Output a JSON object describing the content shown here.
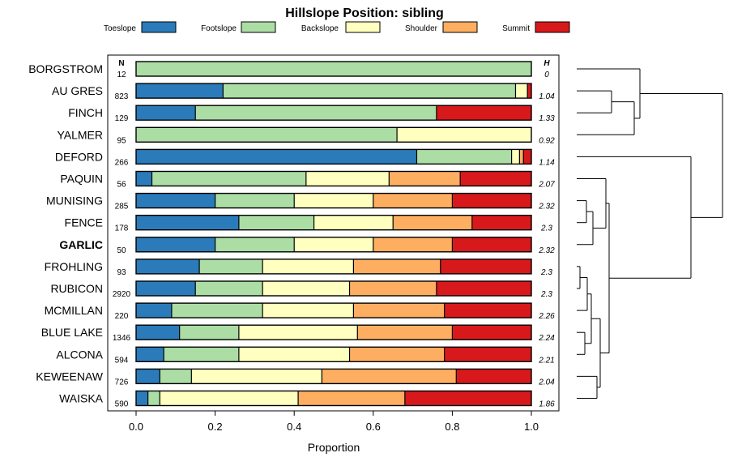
{
  "chart_data": {
    "type": "bar",
    "stacked": true,
    "orientation": "horizontal",
    "title": "Hillslope Position: sibling",
    "xlabel": "Proportion",
    "xlim": [
      0,
      1
    ],
    "xticks": [
      "0.0",
      "0.2",
      "0.4",
      "0.6",
      "0.8",
      "1.0"
    ],
    "n_header": "N",
    "h_header": "H",
    "legend_position": "top",
    "highlight": "GARLIC",
    "series": [
      {
        "name": "Toeslope",
        "color": "#2b7bba"
      },
      {
        "name": "Footslope",
        "color": "#abdda4"
      },
      {
        "name": "Backslope",
        "color": "#ffffbf"
      },
      {
        "name": "Shoulder",
        "color": "#fdae61"
      },
      {
        "name": "Summit",
        "color": "#d7191c"
      }
    ],
    "categories": [
      {
        "name": "BORGSTROM",
        "n": "12",
        "h": "0",
        "values": [
          0,
          1,
          0,
          0,
          0
        ]
      },
      {
        "name": "AU GRES",
        "n": "823",
        "h": "1.04",
        "values": [
          0.22,
          0.74,
          0.03,
          0,
          0.01
        ]
      },
      {
        "name": "FINCH",
        "n": "129",
        "h": "1.33",
        "values": [
          0.15,
          0.61,
          0,
          0,
          0.24
        ]
      },
      {
        "name": "YALMER",
        "n": "95",
        "h": "0.92",
        "values": [
          0,
          0.66,
          0.34,
          0,
          0
        ]
      },
      {
        "name": "DEFORD",
        "n": "266",
        "h": "1.14",
        "values": [
          0.71,
          0.24,
          0.02,
          0.01,
          0.02
        ]
      },
      {
        "name": "PAQUIN",
        "n": "56",
        "h": "2.07",
        "values": [
          0.04,
          0.39,
          0.21,
          0.18,
          0.18
        ]
      },
      {
        "name": "MUNISING",
        "n": "285",
        "h": "2.32",
        "values": [
          0.2,
          0.2,
          0.2,
          0.2,
          0.2
        ]
      },
      {
        "name": "FENCE",
        "n": "178",
        "h": "2.3",
        "values": [
          0.26,
          0.19,
          0.2,
          0.2,
          0.15
        ]
      },
      {
        "name": "GARLIC",
        "n": "50",
        "h": "2.32",
        "values": [
          0.2,
          0.2,
          0.2,
          0.2,
          0.2
        ]
      },
      {
        "name": "FROHLING",
        "n": "93",
        "h": "2.3",
        "values": [
          0.16,
          0.16,
          0.23,
          0.22,
          0.23
        ]
      },
      {
        "name": "RUBICON",
        "n": "2920",
        "h": "2.3",
        "values": [
          0.15,
          0.17,
          0.22,
          0.22,
          0.24
        ]
      },
      {
        "name": "MCMILLAN",
        "n": "220",
        "h": "2.26",
        "values": [
          0.09,
          0.23,
          0.23,
          0.23,
          0.22
        ]
      },
      {
        "name": "BLUE LAKE",
        "n": "1346",
        "h": "2.24",
        "values": [
          0.11,
          0.15,
          0.3,
          0.24,
          0.2
        ]
      },
      {
        "name": "ALCONA",
        "n": "594",
        "h": "2.21",
        "values": [
          0.07,
          0.19,
          0.28,
          0.24,
          0.22
        ]
      },
      {
        "name": "KEWEENAW",
        "n": "726",
        "h": "2.04",
        "values": [
          0.06,
          0.08,
          0.33,
          0.34,
          0.19
        ]
      },
      {
        "name": "WAISKA",
        "n": "590",
        "h": "1.86",
        "values": [
          0.03,
          0.03,
          0.35,
          0.27,
          0.32
        ]
      }
    ]
  }
}
